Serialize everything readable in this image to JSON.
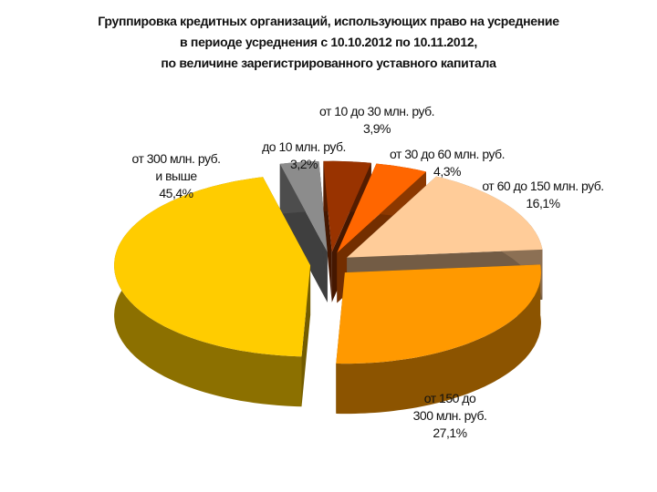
{
  "chart_data": {
    "type": "pie3d",
    "title": "Группировка кредитных организаций, использующих право на усреднение\nв периоде усреднения с 10.10.2012 по 10.11.2012,\nпо величине зарегистрированного уставного капитала",
    "categories": [
      "до 10 млн. руб.",
      "от 10 до 30 млн. руб.",
      "от 30 до 60 млн. руб.",
      "от 60 до 150 млн. руб.",
      "от 150 до\n300 млн. руб.",
      "от 300 млн. руб.\nи выше"
    ],
    "values": [
      3.2,
      3.9,
      4.3,
      16.1,
      27.1,
      45.4
    ],
    "value_labels": [
      "3,2%",
      "3,9%",
      "4,3%",
      "16,1%",
      "27,1%",
      "45,4%"
    ],
    "colors": [
      "#8c8c8c",
      "#993300",
      "#ff6600",
      "#ffcc99",
      "#ff9900",
      "#ffcc00"
    ]
  }
}
